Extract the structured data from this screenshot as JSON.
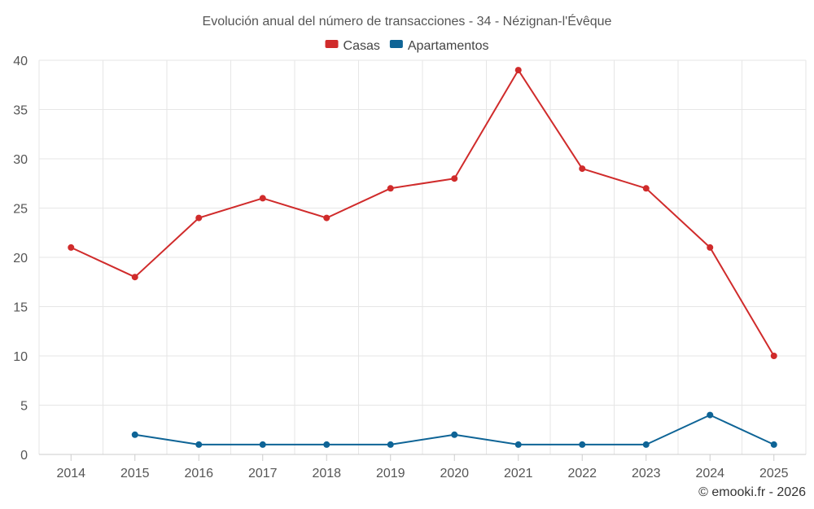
{
  "chart_data": {
    "type": "line",
    "title": "Evolución anual del número de transacciones - 34 - Nézignan-l'Évêque",
    "categories": [
      "2014",
      "2015",
      "2016",
      "2017",
      "2018",
      "2019",
      "2020",
      "2021",
      "2022",
      "2023",
      "2024",
      "2025"
    ],
    "series": [
      {
        "name": "Casas",
        "color": "#d02b2b",
        "values": [
          21,
          18,
          24,
          26,
          24,
          27,
          28,
          39,
          29,
          27,
          21,
          10
        ]
      },
      {
        "name": "Apartamentos",
        "color": "#0e6496",
        "values": [
          null,
          2,
          1,
          1,
          1,
          1,
          2,
          1,
          1,
          1,
          4,
          1
        ]
      }
    ],
    "ylim": [
      0,
      40
    ],
    "yticks": [
      0,
      5,
      10,
      15,
      20,
      25,
      30,
      35,
      40
    ],
    "grid": true,
    "legend": "top-center",
    "credit": "© emooki.fr - 2026"
  }
}
